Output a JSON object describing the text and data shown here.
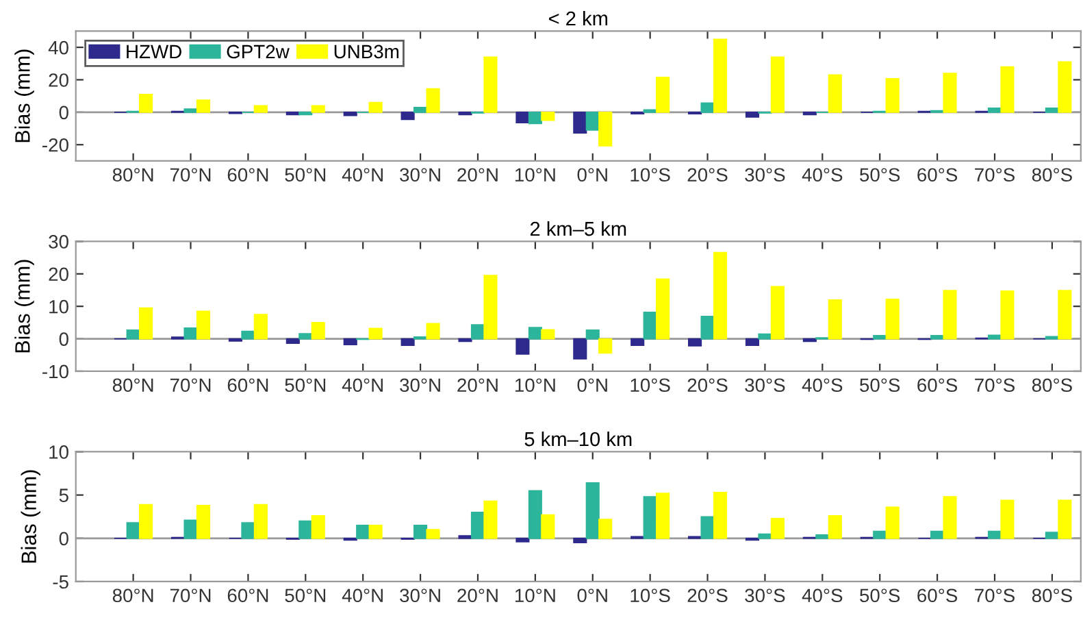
{
  "chart_data": [
    {
      "type": "bar",
      "title": "< 2 km",
      "ylabel": "Bias (mm)",
      "categories": [
        "80°N",
        "70°N",
        "60°N",
        "50°N",
        "40°N",
        "30°N",
        "20°N",
        "10°N",
        "0°N",
        "10°S",
        "20°S",
        "30°S",
        "40°S",
        "50°S",
        "60°S",
        "70°S",
        "80°S"
      ],
      "ylim": [
        -30,
        50
      ],
      "yticks": [
        -20,
        0,
        20,
        40
      ],
      "grid": false,
      "ref_lines": [
        {
          "axis": "y",
          "value": 0,
          "color": "#999999"
        }
      ],
      "legend": "top left",
      "series": [
        {
          "name": "HZWD",
          "color": "#2e2a8c",
          "values": [
            0,
            0.5,
            -0.8,
            -1.5,
            -2,
            -4.5,
            -1.5,
            -6.5,
            -12.8,
            -1,
            -1,
            -3,
            -1.5,
            0,
            0.5,
            0.5,
            0
          ]
        },
        {
          "name": "GPT2w",
          "color": "#2cb59a",
          "values": [
            0.5,
            2,
            0,
            -1.5,
            0,
            3,
            -0.5,
            -7,
            -11,
            1.5,
            5.7,
            -0.5,
            0,
            0.5,
            1,
            2.5,
            2.5
          ]
        },
        {
          "name": "UNB3m",
          "color": "#ffff00",
          "values": [
            11,
            7.5,
            4,
            4,
            6,
            14.5,
            34,
            -5,
            -20.7,
            21.5,
            45,
            34,
            23,
            20.7,
            24,
            28,
            31
          ]
        }
      ]
    },
    {
      "type": "bar",
      "title": "2 km–5 km",
      "ylabel": "Bias (mm)",
      "categories": [
        "80°N",
        "70°N",
        "60°N",
        "50°N",
        "40°N",
        "30°N",
        "20°N",
        "10°N",
        "0°N",
        "10°S",
        "20°S",
        "30°S",
        "40°S",
        "50°S",
        "60°S",
        "70°S",
        "80°S"
      ],
      "ylim": [
        -10,
        30
      ],
      "yticks": [
        -10,
        0,
        10,
        20,
        30
      ],
      "grid": false,
      "ref_lines": [
        {
          "axis": "y",
          "value": 0,
          "color": "#999999"
        }
      ],
      "legend": false,
      "series": [
        {
          "color": "#2e2a8c",
          "values": [
            0,
            0.5,
            -0.7,
            -1.4,
            -1.8,
            -2,
            -0.8,
            -4.7,
            -6.2,
            -2,
            -2.2,
            -2,
            -0.8,
            -0.2,
            -0.2,
            0.2,
            0
          ]
        },
        {
          "color": "#2cb59a",
          "values": [
            2.7,
            3.3,
            2.3,
            1.6,
            -0.2,
            0.6,
            4.3,
            3.5,
            2.7,
            8.2,
            6.9,
            1.5,
            0.3,
            1,
            1,
            1.1,
            0.7
          ]
        },
        {
          "color": "#ffff00",
          "values": [
            9.5,
            8.5,
            7.5,
            5,
            3.2,
            4.7,
            19.5,
            2.8,
            -4.4,
            18.4,
            26.6,
            16.1,
            12,
            12.2,
            14.9,
            14.7,
            14.9
          ]
        }
      ]
    },
    {
      "type": "bar",
      "title": "5 km–10 km",
      "ylabel": "Bias (mm)",
      "categories": [
        "80°N",
        "70°N",
        "60°N",
        "50°N",
        "40°N",
        "30°N",
        "20°N",
        "10°N",
        "0°N",
        "10°S",
        "20°S",
        "30°S",
        "40°S",
        "50°S",
        "60°S",
        "70°S",
        "80°S"
      ],
      "ylim": [
        -5,
        10
      ],
      "yticks": [
        -5,
        0,
        5,
        10
      ],
      "grid": false,
      "ref_lines": [
        {
          "axis": "y",
          "value": 0,
          "color": "#999999"
        }
      ],
      "legend": false,
      "series": [
        {
          "color": "#2e2a8c",
          "values": [
            0,
            0.1,
            0,
            -0.1,
            -0.2,
            -0.1,
            0.3,
            -0.4,
            -0.5,
            0.2,
            0.2,
            -0.2,
            0.1,
            0.1,
            0,
            0.1,
            0
          ]
        },
        {
          "color": "#2cb59a",
          "values": [
            1.8,
            2.1,
            1.8,
            2.0,
            1.5,
            1.5,
            3.0,
            5.5,
            6.4,
            4.8,
            2.5,
            0.5,
            0.4,
            0.8,
            0.8,
            0.8,
            0.7
          ]
        },
        {
          "color": "#ffff00",
          "values": [
            3.9,
            3.8,
            3.9,
            2.6,
            1.5,
            1.0,
            4.3,
            2.7,
            2.2,
            5.2,
            5.3,
            2.3,
            2.6,
            3.6,
            4.8,
            4.4,
            4.4
          ]
        }
      ]
    }
  ]
}
